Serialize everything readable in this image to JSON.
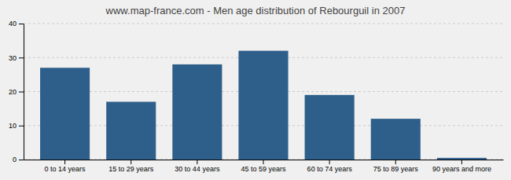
{
  "chart_data": {
    "type": "bar",
    "title": "www.map-france.com - Men age distribution of Rebourguil in 2007",
    "categories": [
      "0 to 14 years",
      "15 to 29 years",
      "30 to 44 years",
      "45 to 59 years",
      "60 to 74 years",
      "75 to 89 years",
      "90 years and more"
    ],
    "values": [
      27,
      17,
      28,
      32,
      19,
      12,
      0.5
    ],
    "color": "#2e5f8a",
    "ylim": [
      0,
      40
    ],
    "yticks": [
      0,
      10,
      20,
      30,
      40
    ],
    "grid": true
  }
}
